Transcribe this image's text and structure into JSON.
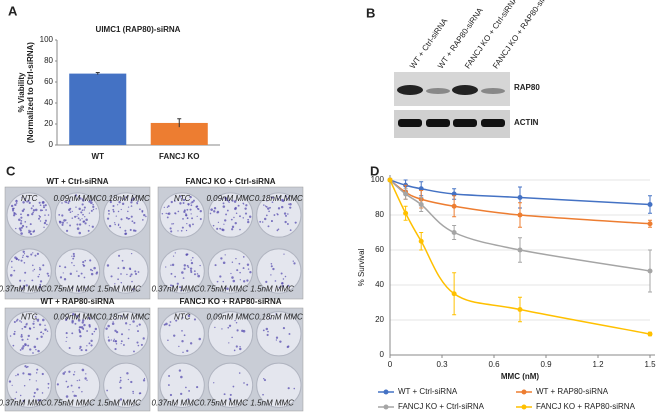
{
  "panels": [
    "A",
    "B",
    "C",
    "D"
  ],
  "blot": {
    "lanes": [
      "WT + Ctrl-siRNA",
      "WT + RAP80-siRNA",
      "FANCJ KO + Ctrl-siRNA",
      "FANCJ KO + RAP80-siRNA"
    ],
    "bands": [
      "RAP80",
      "ACTIN"
    ]
  },
  "plates": {
    "titles": [
      "WT + Ctrl-siRNA",
      "FANCJ KO + Ctrl-siRNA",
      "WT + RAP80-siRNA",
      "FANCJ KO + RAP80-siRNA"
    ],
    "wells": [
      "NTC",
      "0.09nM MMC",
      "0.18nM MMC",
      "0.37nM MMC",
      "0.75nM MMC",
      "1.5nM MMC"
    ]
  },
  "chart_data": [
    {
      "type": "bar",
      "title": "UIMC1 (RAP80)-siRNA",
      "ylabel": [
        "% Viability",
        "(Normalized to Ctrl-siRNA)"
      ],
      "categories": [
        "WT",
        "FANCJ KO"
      ],
      "values": [
        68,
        21
      ],
      "errors": [
        1,
        4
      ],
      "colors": [
        "#4472c4",
        "#ed7d31"
      ],
      "ylim": [
        0,
        100
      ],
      "yticks": [
        0,
        20,
        40,
        60,
        80,
        100
      ]
    },
    {
      "type": "line",
      "xlabel": "MMC (nM)",
      "ylabel": "% Survival",
      "x": [
        0,
        0.09,
        0.18,
        0.37,
        0.75,
        1.5
      ],
      "series": [
        {
          "name": "WT + Ctrl-siRNA",
          "color": "#4472c4",
          "values": [
            100,
            97,
            95,
            92,
            90,
            86
          ],
          "errors": [
            0,
            3,
            4,
            3,
            6,
            5
          ]
        },
        {
          "name": "WT + RAP80-siRNA",
          "color": "#ed7d31",
          "values": [
            100,
            93,
            89,
            85,
            80,
            75
          ],
          "errors": [
            0,
            4,
            5,
            6,
            7,
            2
          ]
        },
        {
          "name": "FANCJ KO + Ctrl-siRNA",
          "color": "#a5a5a5",
          "values": [
            100,
            92,
            86,
            70,
            60,
            48
          ],
          "errors": [
            0,
            3,
            4,
            4,
            7,
            12
          ]
        },
        {
          "name": "FANCJ KO + RAP80-siRNA",
          "color": "#ffc000",
          "values": [
            100,
            81,
            65,
            35,
            26,
            12
          ],
          "errors": [
            0,
            4,
            5,
            12,
            7,
            1
          ]
        }
      ],
      "xlim": [
        0,
        1.5
      ],
      "xticks": [
        0,
        0.3,
        0.6,
        0.9,
        1.2,
        1.5
      ],
      "ylim": [
        0,
        100
      ],
      "yticks": [
        0,
        20,
        40,
        60,
        80,
        100
      ],
      "grid": true,
      "legend": "bottom"
    }
  ]
}
